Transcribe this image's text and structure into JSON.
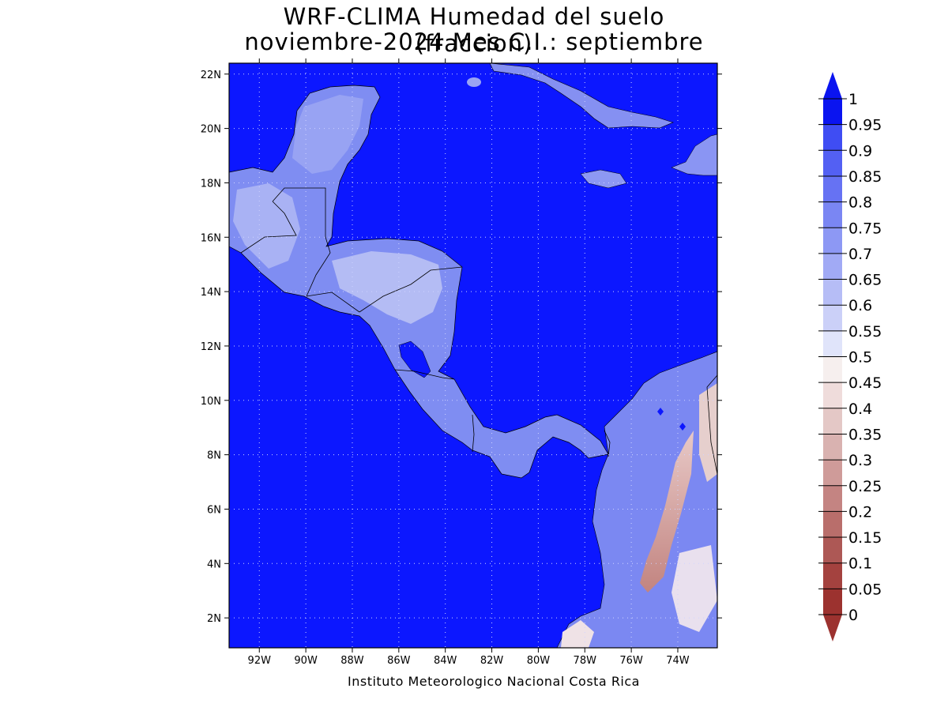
{
  "title_line1": "WRF-CLIMA Humedad del suelo (fraccion)",
  "title_line2": "noviembre-2024 Mes C.I.: septiembre",
  "credit": "Instituto Meteorologico Nacional Costa Rica",
  "colors": {
    "ocean": "#0c17ff",
    "land_wet": "#5c6cf0",
    "land_mid": "#a7b2f3",
    "land_dry": "#c7837f",
    "border": "#000000"
  },
  "map_extent": {
    "lon": [
      -93.3,
      -72.3
    ],
    "lat": [
      0.9,
      22.4
    ]
  },
  "axes": {
    "x_ticks": [
      "92W",
      "90W",
      "88W",
      "86W",
      "84W",
      "82W",
      "80W",
      "78W",
      "76W",
      "74W"
    ],
    "x_tick_values": [
      -92,
      -90,
      -88,
      -86,
      -84,
      -82,
      -80,
      -78,
      -76,
      -74
    ],
    "y_ticks": [
      "2N",
      "4N",
      "6N",
      "8N",
      "10N",
      "12N",
      "14N",
      "16N",
      "18N",
      "20N",
      "22N"
    ],
    "y_tick_values": [
      2,
      4,
      6,
      8,
      10,
      12,
      14,
      16,
      18,
      20,
      22
    ],
    "grid": "dotted"
  },
  "colorbar": {
    "labels": [
      "1",
      "0.95",
      "0.9",
      "0.85",
      "0.8",
      "0.75",
      "0.7",
      "0.65",
      "0.6",
      "0.55",
      "0.5",
      "0.45",
      "0.4",
      "0.35",
      "0.3",
      "0.25",
      "0.2",
      "0.15",
      "0.1",
      "0.05",
      "0"
    ],
    "colors": [
      "#0a14f0",
      "#2a36f4",
      "#3f4df3",
      "#5360f3",
      "#6672f3",
      "#7a86f3",
      "#8d98f4",
      "#a1aaf5",
      "#b6bdf6",
      "#cbd0f8",
      "#e0e4fa",
      "#f6efee",
      "#efdcdb",
      "#e4c8c6",
      "#d9b2b0",
      "#cf9b99",
      "#c48482",
      "#b96e6b",
      "#ad5855",
      "#a4423f",
      "#9c322f"
    ],
    "extends": "both"
  }
}
